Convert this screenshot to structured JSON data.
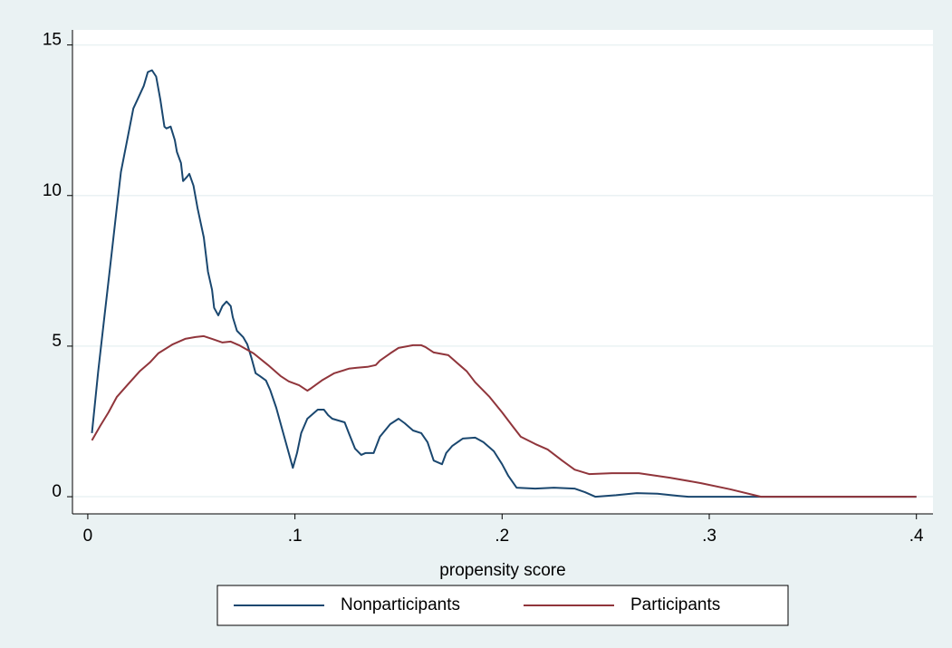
{
  "chart_data": {
    "type": "line",
    "x_label": "propensity score",
    "xlim": [
      -0.0074,
      0.408
    ],
    "ylim": [
      -0.57,
      15.5
    ],
    "xticks": [
      0,
      {
        "value": 0.1,
        "label": ".1"
      },
      {
        "value": 0.2,
        "label": ".2"
      },
      {
        "value": 0.3,
        "label": ".3"
      },
      {
        "value": 0.4,
        "label": ".4"
      }
    ],
    "yticks": [
      0,
      5,
      10,
      15
    ],
    "grid": true,
    "legend": "bottom",
    "series": [
      {
        "name": "Nonparticipants",
        "color": "#1a476f",
        "x": [
          0.002,
          0.005,
          0.008,
          0.011,
          0.014,
          0.016,
          0.019,
          0.022,
          0.024,
          0.027,
          0.029,
          0.031,
          0.033,
          0.035,
          0.037,
          0.038,
          0.04,
          0.042,
          0.043,
          0.045,
          0.046,
          0.048,
          0.049,
          0.051,
          0.053,
          0.056,
          0.058,
          0.06,
          0.061,
          0.063,
          0.065,
          0.067,
          0.069,
          0.07,
          0.072,
          0.075,
          0.077,
          0.079,
          0.081,
          0.083,
          0.086,
          0.088,
          0.091,
          0.094,
          0.097,
          0.099,
          0.101,
          0.103,
          0.106,
          0.111,
          0.114,
          0.116,
          0.118,
          0.124,
          0.126,
          0.129,
          0.132,
          0.134,
          0.138,
          0.141,
          0.146,
          0.15,
          0.153,
          0.157,
          0.161,
          0.164,
          0.167,
          0.171,
          0.173,
          0.176,
          0.181,
          0.187,
          0.191,
          0.196,
          0.2,
          0.203,
          0.207,
          0.216,
          0.225,
          0.235,
          0.24,
          0.245,
          0.255,
          0.265,
          0.275,
          0.285,
          0.29,
          0.3,
          0.4
        ],
        "values": [
          2.11,
          4.16,
          5.96,
          7.77,
          9.58,
          10.78,
          11.84,
          12.89,
          13.19,
          13.64,
          14.1,
          14.16,
          13.95,
          13.19,
          12.29,
          12.23,
          12.29,
          11.84,
          11.45,
          11.08,
          10.48,
          10.63,
          10.72,
          10.33,
          9.58,
          8.61,
          7.47,
          6.87,
          6.27,
          6.02,
          6.33,
          6.48,
          6.33,
          5.96,
          5.51,
          5.3,
          5.06,
          4.61,
          4.1,
          4.01,
          3.86,
          3.55,
          2.95,
          2.2,
          1.45,
          0.96,
          1.45,
          2.11,
          2.59,
          2.89,
          2.89,
          2.71,
          2.59,
          2.47,
          2.11,
          1.6,
          1.39,
          1.45,
          1.45,
          1.99,
          2.41,
          2.59,
          2.44,
          2.2,
          2.11,
          1.81,
          1.2,
          1.08,
          1.45,
          1.69,
          1.93,
          1.96,
          1.81,
          1.51,
          1.08,
          0.69,
          0.3,
          0.27,
          0.3,
          0.27,
          0.15,
          0.0,
          0.05,
          0.12,
          0.1,
          0.03,
          0.0,
          0.0,
          0.0
        ]
      },
      {
        "name": "Participants",
        "color": "#90353b",
        "x": [
          0.002,
          0.006,
          0.01,
          0.014,
          0.019,
          0.025,
          0.03,
          0.034,
          0.041,
          0.047,
          0.052,
          0.056,
          0.06,
          0.065,
          0.069,
          0.073,
          0.08,
          0.087,
          0.093,
          0.097,
          0.102,
          0.106,
          0.108,
          0.113,
          0.119,
          0.126,
          0.13,
          0.135,
          0.139,
          0.141,
          0.146,
          0.15,
          0.157,
          0.161,
          0.163,
          0.167,
          0.174,
          0.178,
          0.183,
          0.187,
          0.194,
          0.2,
          0.205,
          0.209,
          0.216,
          0.222,
          0.229,
          0.235,
          0.242,
          0.253,
          0.266,
          0.281,
          0.296,
          0.31,
          0.325,
          0.4
        ],
        "values": [
          1.87,
          2.35,
          2.8,
          3.31,
          3.7,
          4.16,
          4.46,
          4.76,
          5.06,
          5.24,
          5.3,
          5.33,
          5.24,
          5.12,
          5.15,
          5.03,
          4.76,
          4.37,
          4.01,
          3.83,
          3.7,
          3.52,
          3.61,
          3.86,
          4.1,
          4.25,
          4.28,
          4.31,
          4.37,
          4.52,
          4.76,
          4.94,
          5.03,
          5.03,
          4.97,
          4.79,
          4.7,
          4.46,
          4.16,
          3.8,
          3.31,
          2.8,
          2.35,
          1.99,
          1.75,
          1.57,
          1.2,
          0.9,
          0.75,
          0.78,
          0.78,
          0.63,
          0.45,
          0.25,
          0.0,
          0.0
        ]
      }
    ]
  }
}
